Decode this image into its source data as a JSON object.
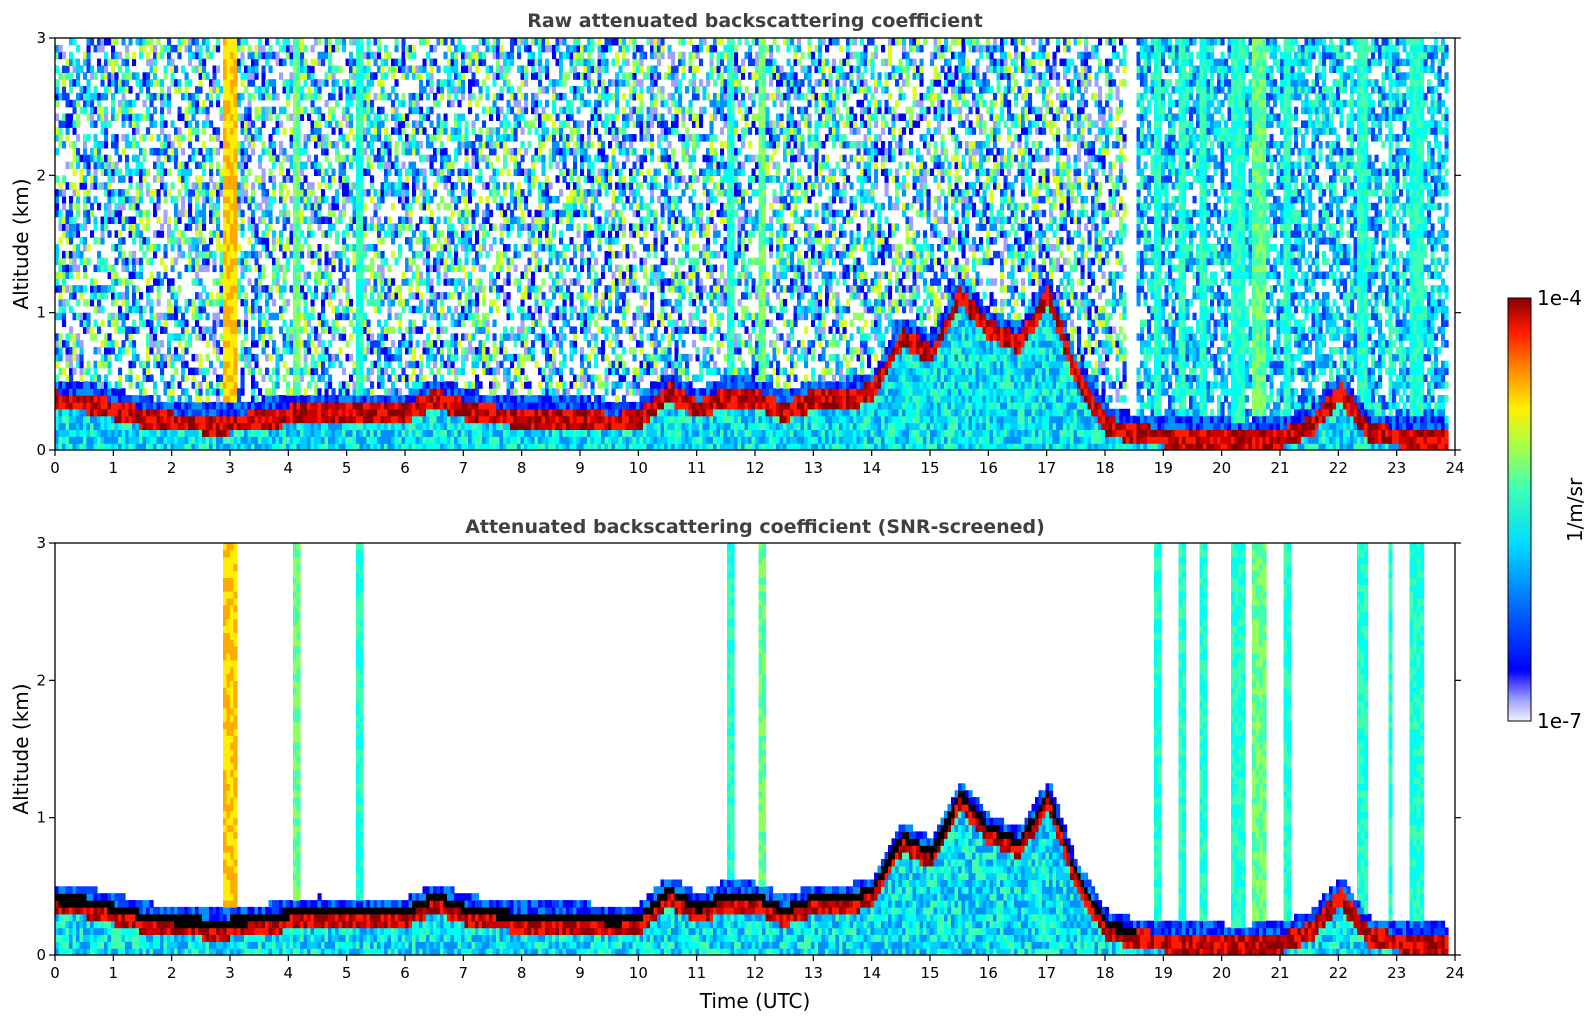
{
  "chart_data": [
    {
      "type": "heatmap",
      "title": "Raw attenuated backscattering coefficient",
      "xlabel": "",
      "ylabel": "Altitude (km)",
      "xlim": [
        0,
        24
      ],
      "ylim": [
        0,
        3
      ],
      "xticks": [
        "0",
        "1",
        "2",
        "3",
        "4",
        "5",
        "6",
        "7",
        "8",
        "9",
        "10",
        "11",
        "12",
        "13",
        "14",
        "15",
        "16",
        "17",
        "18",
        "19",
        "20",
        "21",
        "22",
        "23",
        "24"
      ],
      "yticks": [
        "0",
        "1",
        "2",
        "3"
      ],
      "screened": false,
      "boundary_layer_top_km": [
        [
          0,
          0.38
        ],
        [
          0.5,
          0.37
        ],
        [
          1,
          0.32
        ],
        [
          1.5,
          0.26
        ],
        [
          2,
          0.23
        ],
        [
          2.5,
          0.22
        ],
        [
          3,
          0.22
        ],
        [
          3.5,
          0.24
        ],
        [
          4,
          0.28
        ],
        [
          4.5,
          0.3
        ],
        [
          5,
          0.29
        ],
        [
          5.5,
          0.28
        ],
        [
          6,
          0.3
        ],
        [
          6.5,
          0.4
        ],
        [
          7,
          0.32
        ],
        [
          7.5,
          0.28
        ],
        [
          8,
          0.26
        ],
        [
          8.5,
          0.25
        ],
        [
          9,
          0.26
        ],
        [
          9.5,
          0.22
        ],
        [
          10,
          0.25
        ],
        [
          10.5,
          0.45
        ],
        [
          11,
          0.32
        ],
        [
          11.5,
          0.42
        ],
        [
          12,
          0.4
        ],
        [
          12.5,
          0.3
        ],
        [
          13,
          0.4
        ],
        [
          13.5,
          0.38
        ],
        [
          14,
          0.45
        ],
        [
          14.5,
          0.85
        ],
        [
          15,
          0.72
        ],
        [
          15.5,
          1.15
        ],
        [
          16,
          0.9
        ],
        [
          16.5,
          0.8
        ],
        [
          17,
          1.15
        ],
        [
          17.5,
          0.55
        ],
        [
          18,
          0.2
        ],
        [
          18.5,
          0.14
        ],
        [
          19,
          0.12
        ],
        [
          19.5,
          0.11
        ],
        [
          20,
          0.1
        ],
        [
          20.5,
          0.1
        ],
        [
          21,
          0.12
        ],
        [
          21.5,
          0.2
        ],
        [
          22,
          0.45
        ],
        [
          22.5,
          0.15
        ],
        [
          23,
          0.12
        ],
        [
          23.8,
          0.1
        ]
      ],
      "colorbar": {
        "min_label": "1e-7",
        "max_label": "1e-4",
        "label": "1/m/sr",
        "scale": "log",
        "min": 1e-07,
        "max": 0.0001,
        "colormap": "jet"
      }
    },
    {
      "type": "heatmap",
      "title": "Attenuated backscattering coefficient (SNR-screened)",
      "xlabel": "Time (UTC)",
      "ylabel": "Altitude (km)",
      "xlim": [
        0,
        24
      ],
      "ylim": [
        0,
        3
      ],
      "xticks": [
        "0",
        "1",
        "2",
        "3",
        "4",
        "5",
        "6",
        "7",
        "8",
        "9",
        "10",
        "11",
        "12",
        "13",
        "14",
        "15",
        "16",
        "17",
        "18",
        "19",
        "20",
        "21",
        "22",
        "23",
        "24"
      ],
      "yticks": [
        "0",
        "1",
        "2",
        "3"
      ],
      "screened": true,
      "boundary_layer_top_km": [
        [
          0,
          0.38
        ],
        [
          0.5,
          0.37
        ],
        [
          1,
          0.32
        ],
        [
          1.5,
          0.26
        ],
        [
          2,
          0.23
        ],
        [
          2.5,
          0.22
        ],
        [
          3,
          0.22
        ],
        [
          3.5,
          0.24
        ],
        [
          4,
          0.28
        ],
        [
          4.5,
          0.3
        ],
        [
          5,
          0.29
        ],
        [
          5.5,
          0.28
        ],
        [
          6,
          0.3
        ],
        [
          6.5,
          0.4
        ],
        [
          7,
          0.32
        ],
        [
          7.5,
          0.28
        ],
        [
          8,
          0.26
        ],
        [
          8.5,
          0.25
        ],
        [
          9,
          0.26
        ],
        [
          9.5,
          0.22
        ],
        [
          10,
          0.25
        ],
        [
          10.5,
          0.45
        ],
        [
          11,
          0.32
        ],
        [
          11.5,
          0.42
        ],
        [
          12,
          0.4
        ],
        [
          12.5,
          0.3
        ],
        [
          13,
          0.4
        ],
        [
          13.5,
          0.38
        ],
        [
          14,
          0.45
        ],
        [
          14.5,
          0.85
        ],
        [
          15,
          0.72
        ],
        [
          15.5,
          1.15
        ],
        [
          16,
          0.9
        ],
        [
          16.5,
          0.8
        ],
        [
          17,
          1.15
        ],
        [
          17.5,
          0.55
        ],
        [
          18,
          0.2
        ],
        [
          18.5,
          0.14
        ],
        [
          19,
          0.12
        ],
        [
          19.5,
          0.11
        ],
        [
          20,
          0.1
        ],
        [
          20.5,
          0.1
        ],
        [
          21,
          0.12
        ],
        [
          21.5,
          0.2
        ],
        [
          22,
          0.45
        ],
        [
          22.5,
          0.15
        ],
        [
          23,
          0.12
        ],
        [
          23.8,
          0.1
        ]
      ],
      "colorbar": {
        "min_label": "1e-7",
        "max_label": "1e-4",
        "label": "1/m/sr",
        "scale": "log",
        "min": 1e-07,
        "max": 0.0001,
        "colormap": "jet"
      }
    }
  ],
  "colorbar": {
    "max_label": "1e-4",
    "min_label": "1e-7",
    "label": "1/m/sr"
  }
}
